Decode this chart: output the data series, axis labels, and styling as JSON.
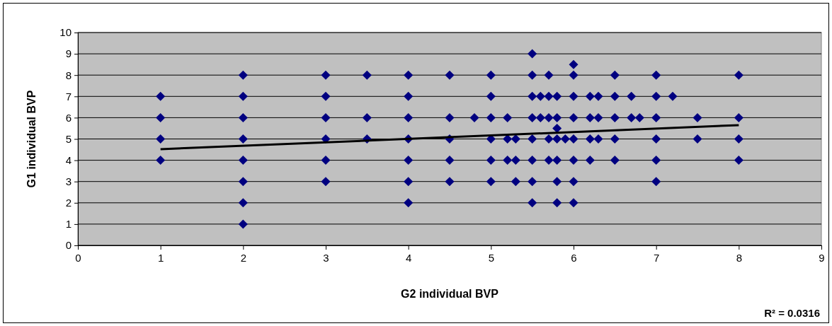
{
  "chart_data": {
    "type": "scatter",
    "xlabel": "G2 individual BVP",
    "ylabel": "G1 individual BVP",
    "xlim": [
      0,
      9
    ],
    "xticks": [
      0,
      1,
      2,
      3,
      4,
      5,
      6,
      7,
      8,
      9
    ],
    "ylim": [
      0,
      10
    ],
    "yticks": [
      0,
      1,
      2,
      3,
      4,
      5,
      6,
      7,
      8,
      9,
      10
    ],
    "grid": "y",
    "series": [
      {
        "marker": "diamond",
        "color": "#000080",
        "x": [
          1,
          1,
          1,
          1,
          2,
          2,
          2,
          2,
          2,
          2,
          2,
          2,
          3,
          3,
          3,
          3,
          3,
          3,
          3.5,
          3.5,
          3.5,
          4,
          4,
          4,
          4,
          4,
          4,
          4,
          4.5,
          4.5,
          4.5,
          4.5,
          4.5,
          4.8,
          5,
          5,
          5,
          5,
          5,
          5,
          5.2,
          5.2,
          5.2,
          5.3,
          5.3,
          5.3,
          5.5,
          5.5,
          5.5,
          5.5,
          5.5,
          5.5,
          5.5,
          5.5,
          5.6,
          5.6,
          5.7,
          5.7,
          5.7,
          5.7,
          5.7,
          5.8,
          5.8,
          5.8,
          5.8,
          5.8,
          5.8,
          5.8,
          5.9,
          6,
          6,
          6,
          6,
          6,
          6,
          6,
          6,
          6.2,
          6.2,
          6.2,
          6.2,
          6.3,
          6.3,
          6.3,
          6.5,
          6.5,
          6.5,
          6.5,
          6.5,
          6.7,
          6.7,
          6.8,
          7,
          7,
          7,
          7,
          7,
          7,
          7.2,
          7.5,
          7.5,
          8,
          8,
          8,
          8
        ],
        "values": [
          4,
          5,
          6,
          7,
          1,
          2,
          3,
          4,
          5,
          6,
          7,
          8,
          3,
          4,
          5,
          6,
          7,
          8,
          5,
          6,
          8,
          2,
          3,
          4,
          5,
          6,
          7,
          8,
          8,
          6,
          5,
          4,
          3,
          6,
          8,
          7,
          6,
          5,
          4,
          3,
          6,
          5,
          4,
          5,
          4,
          3,
          9,
          8,
          7,
          6,
          5,
          4,
          3,
          2,
          7,
          6,
          8,
          7,
          6,
          5,
          4,
          7,
          6,
          5.5,
          5,
          4,
          3,
          2,
          5,
          8.5,
          8,
          7,
          6,
          5,
          4,
          3,
          2,
          7,
          6,
          5,
          4,
          7,
          6,
          5,
          8,
          7,
          6,
          5,
          4,
          7,
          6,
          6,
          8,
          7,
          6,
          5,
          4,
          3,
          7,
          6,
          5,
          8,
          6,
          5,
          4
        ]
      },
      {
        "type": "line",
        "color": "#000000",
        "x": [
          1,
          8
        ],
        "values": [
          4.52,
          5.65
        ]
      }
    ],
    "annotations": [
      "R² = 0.0316"
    ]
  }
}
